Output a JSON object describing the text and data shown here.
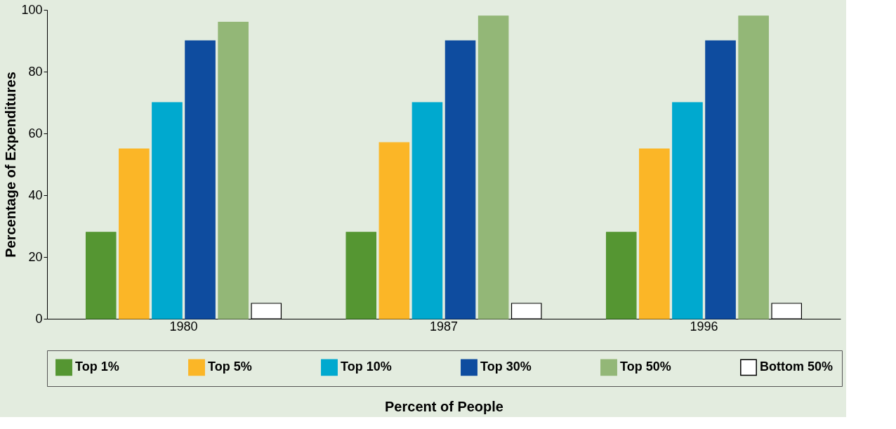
{
  "chart_data": {
    "type": "bar",
    "xlabel": "Percent of People",
    "ylabel": "Percentage of Expenditures",
    "categories": [
      "1980",
      "1987",
      "1996"
    ],
    "series": [
      {
        "name": "Top 1%",
        "color": "#559632",
        "values": [
          28,
          28,
          28
        ]
      },
      {
        "name": "Top 5%",
        "color": "#fbb627",
        "values": [
          55,
          57,
          55
        ]
      },
      {
        "name": "Top 10%",
        "color": "#00a9cf",
        "values": [
          70,
          70,
          70
        ]
      },
      {
        "name": "Top 30%",
        "color": "#0e4c9f",
        "values": [
          90,
          90,
          90
        ]
      },
      {
        "name": "Top 50%",
        "color": "#93b777",
        "values": [
          96,
          98,
          98
        ]
      },
      {
        "name": "Bottom 50%",
        "color": "#ffffff",
        "values": [
          5,
          5,
          5
        ]
      }
    ],
    "ylim": [
      0,
      100
    ],
    "yticks": [
      0,
      20,
      40,
      60,
      80,
      100
    ],
    "grid": false,
    "legend": "bottom"
  }
}
